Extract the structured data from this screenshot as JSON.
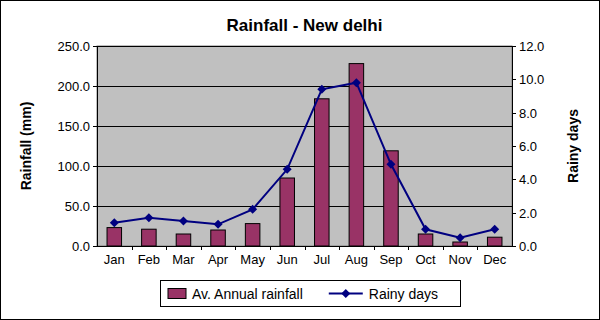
{
  "chart_data": {
    "type": "bar",
    "title": "Rainfall - New delhi",
    "ylabel": "Rainfall (mm)",
    "y2label": "Rainy days",
    "categories": [
      "Jan",
      "Feb",
      "Mar",
      "Apr",
      "May",
      "Jun",
      "Jul",
      "Aug",
      "Sep",
      "Oct",
      "Nov",
      "Dec"
    ],
    "series": [
      {
        "name": "Av. Annual rainfall",
        "type": "bar",
        "color": "#993366",
        "values": [
          23,
          21,
          15,
          20,
          28,
          85,
          184,
          228,
          119,
          15,
          5,
          11
        ]
      },
      {
        "name": "Rainy days",
        "type": "line",
        "color": "#000080",
        "marker": "diamond",
        "axis": "y2",
        "values": [
          1.4,
          1.7,
          1.5,
          1.3,
          2.2,
          4.6,
          9.4,
          9.8,
          4.9,
          1.0,
          0.5,
          1.0
        ]
      }
    ],
    "ylim": [
      0,
      250
    ],
    "yticks": [
      {
        "value": 0,
        "label": "0.0"
      },
      {
        "value": 50,
        "label": "50.0"
      },
      {
        "value": 100,
        "label": "100.0"
      },
      {
        "value": 150,
        "label": "150.0"
      },
      {
        "value": 200,
        "label": "200.0"
      },
      {
        "value": 250,
        "label": "250.0"
      }
    ],
    "y2lim": [
      0,
      12
    ],
    "y2ticks": [
      {
        "value": 0,
        "label": "0.0"
      },
      {
        "value": 2,
        "label": "2.0"
      },
      {
        "value": 4,
        "label": "4.0"
      },
      {
        "value": 6,
        "label": "6.0"
      },
      {
        "value": 8,
        "label": "8.0"
      },
      {
        "value": 10,
        "label": "10.0"
      },
      {
        "value": 12,
        "label": "12.0"
      }
    ],
    "grid": true,
    "legend": "bottom"
  }
}
